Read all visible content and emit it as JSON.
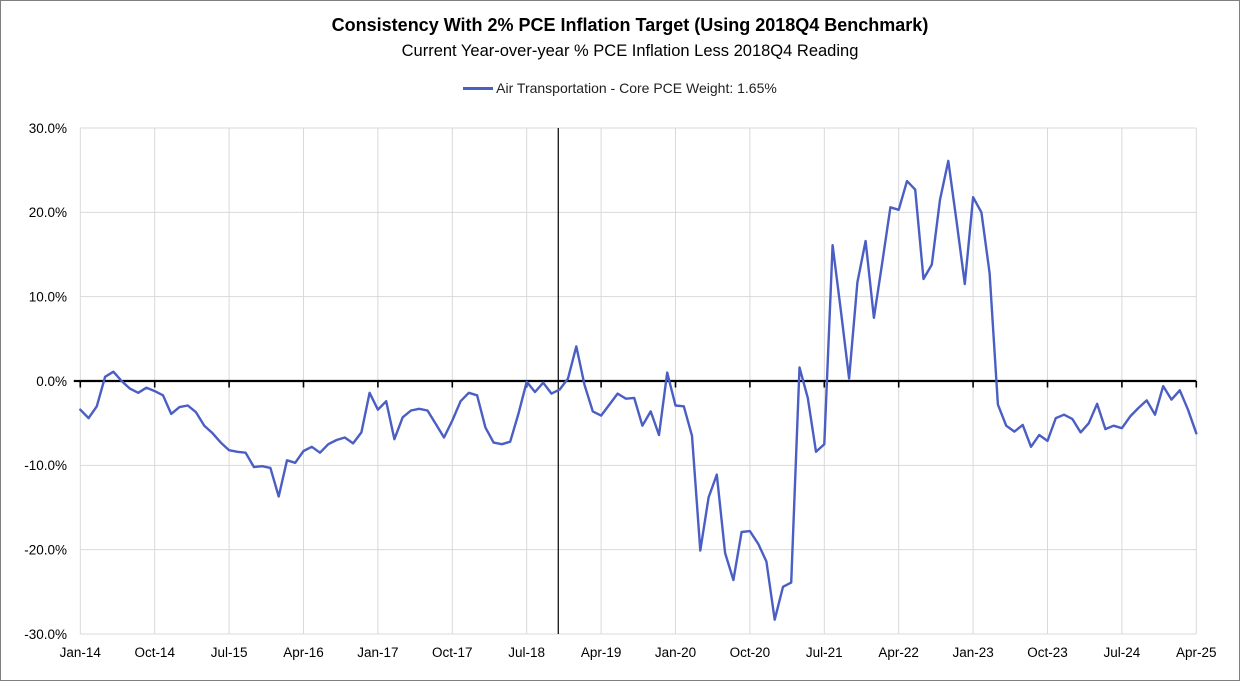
{
  "header": {
    "title": "Consistency With 2% PCE Inflation Target (Using 2018Q4 Benchmark)",
    "subtitle": "Current Year-over-year % PCE Inflation Less 2018Q4 Reading"
  },
  "legend": {
    "label": "Air Transportation - Core PCE Weight: 1.65%"
  },
  "colors": {
    "series_line": "#4a5ec4",
    "gridline": "#d9d9d9",
    "axis_line": "#000000",
    "benchmark_line": "#000000",
    "text": "#000000"
  },
  "chart_data": {
    "type": "line",
    "title": "Consistency With 2% PCE Inflation Target (Using 2018Q4 Benchmark)",
    "subtitle": "Current Year-over-year % PCE Inflation Less 2018Q4 Reading",
    "series_name": "Air Transportation - Core PCE Weight: 1.65%",
    "frequency": "monthly",
    "x_start": "Jan-2014",
    "x_end": "Apr-2025",
    "n_points": 136,
    "values": [
      -3.4,
      -4.4,
      -3.0,
      0.5,
      1.1,
      0.0,
      -0.9,
      -1.4,
      -0.8,
      -1.2,
      -1.7,
      -3.9,
      -3.1,
      -2.9,
      -3.7,
      -5.3,
      -6.2,
      -7.3,
      -8.2,
      -8.4,
      -8.5,
      -10.2,
      -10.1,
      -10.3,
      -13.7,
      -9.4,
      -9.7,
      -8.3,
      -7.8,
      -8.5,
      -7.5,
      -7.0,
      -6.7,
      -7.4,
      -6.1,
      -1.4,
      -3.4,
      -2.4,
      -6.9,
      -4.3,
      -3.5,
      -3.3,
      -3.5,
      -5.1,
      -6.7,
      -4.7,
      -2.4,
      -1.4,
      -1.7,
      -5.5,
      -7.3,
      -7.5,
      -7.2,
      -3.9,
      -0.1,
      -1.3,
      -0.2,
      -1.5,
      -1.0,
      0.3,
      4.1,
      -0.5,
      -3.6,
      -4.1,
      -2.8,
      -1.5,
      -2.1,
      -2.0,
      -5.3,
      -3.6,
      -6.4,
      1.0,
      -2.9,
      -3.0,
      -6.5,
      -20.1,
      -13.8,
      -11.1,
      -20.4,
      -23.6,
      -17.9,
      -17.8,
      -19.3,
      -21.4,
      -28.3,
      -24.4,
      -23.9,
      1.6,
      -2.0,
      -8.4,
      -7.5,
      16.1,
      8.4,
      0.3,
      11.7,
      16.6,
      7.5,
      14.0,
      20.6,
      20.3,
      23.7,
      22.7,
      12.1,
      13.8,
      21.5,
      26.1,
      18.9,
      11.5,
      21.8,
      20.0,
      12.8,
      -2.8,
      -5.3,
      -6.0,
      -5.2,
      -7.8,
      -6.4,
      -7.1,
      -4.4,
      -4.0,
      -4.5,
      -6.1,
      -5.0,
      -2.7,
      -5.7,
      -5.3,
      -5.6,
      -4.2,
      -3.2,
      -2.3,
      -4.0,
      -0.6,
      -2.2,
      -1.1,
      -3.4,
      -6.2
    ],
    "x_tick_labels": [
      "Jan-14",
      "Oct-14",
      "Jul-15",
      "Apr-16",
      "Jan-17",
      "Oct-17",
      "Jul-18",
      "Apr-19",
      "Jan-20",
      "Oct-20",
      "Jul-21",
      "Apr-22",
      "Jan-23",
      "Oct-23",
      "Jul-24",
      "Apr-25"
    ],
    "x_tick_every_months": 9,
    "y_tick_labels": [
      "30.0%",
      "20.0%",
      "10.0%",
      "0.0%",
      "-10.0%",
      "-20.0%",
      "-30.0%"
    ],
    "y_tick_values": [
      30,
      20,
      10,
      0,
      -10,
      -20,
      -30
    ],
    "ylim": [
      -30,
      30
    ],
    "zero_axis": true,
    "grid": true,
    "legend_position": "top",
    "benchmark_marker": {
      "label": "2018Q4",
      "month_index": 58
    }
  }
}
